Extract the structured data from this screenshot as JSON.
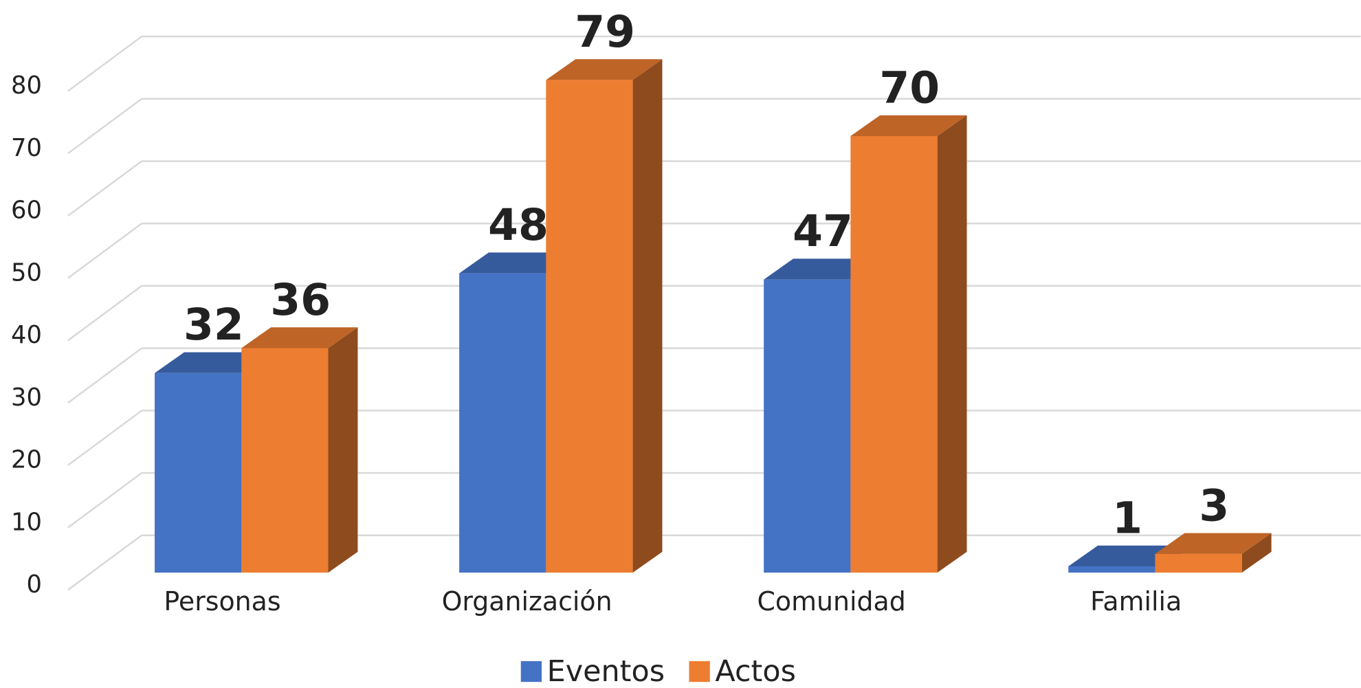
{
  "chart_data": {
    "type": "bar3d",
    "categories": [
      "Personas",
      "Organización",
      "Comunidad",
      "Familia"
    ],
    "series": [
      {
        "name": "Eventos",
        "color": "#4472c4",
        "values": [
          32,
          48,
          47,
          1
        ]
      },
      {
        "name": "Actos",
        "color": "#ed7d31",
        "values": [
          36,
          79,
          70,
          3
        ]
      }
    ],
    "ylim": [
      0,
      80
    ],
    "yticks": [
      0,
      10,
      20,
      30,
      40,
      50,
      60,
      70,
      80
    ],
    "grid": true,
    "legend": "bottom"
  }
}
